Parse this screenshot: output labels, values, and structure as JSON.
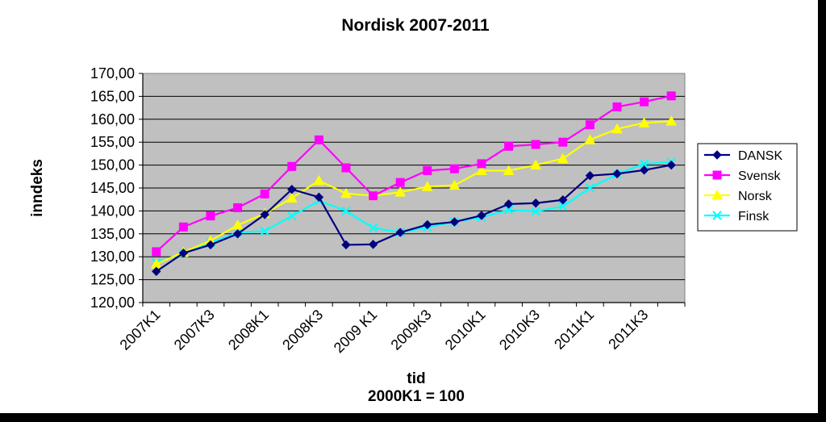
{
  "chart_data": {
    "type": "line",
    "title": "Nordisk 2007-2011",
    "xlabel": "tid",
    "xlabel_note": "2000K1 = 100",
    "ylabel": "inndeks",
    "ylim": [
      120,
      170
    ],
    "yticks": [
      "120,00",
      "125,00",
      "130,00",
      "135,00",
      "140,00",
      "145,00",
      "150,00",
      "155,00",
      "160,00",
      "165,00",
      "170,00"
    ],
    "grid": true,
    "legend_position": "right",
    "plot_background": "#c0c0c0",
    "categories": [
      "2007K1",
      "2007K2",
      "2007K3",
      "2007K4",
      "2008K1",
      "2008K2",
      "2008K3",
      "2008K4",
      "2009 K1",
      "2009K2",
      "2009K3",
      "2009K4",
      "2010K1",
      "2010K2",
      "2010K3",
      "2010K4",
      "2011K1",
      "2011K2",
      "2011K3",
      "2011K4"
    ],
    "xtick_labels": [
      "2007K1",
      "2007K3",
      "2008K1",
      "2008K3",
      "2009 K1",
      "2009K3",
      "2010K1",
      "2010K3",
      "2011K1",
      "2011K3"
    ],
    "series": [
      {
        "name": "DANSK",
        "color": "#000080",
        "marker": "diamond",
        "values": [
          126.8,
          130.8,
          132.6,
          135.0,
          139.2,
          144.7,
          143.0,
          132.6,
          132.7,
          135.3,
          137.0,
          137.6,
          139.0,
          141.5,
          141.7,
          142.4,
          147.7,
          148.1,
          148.9,
          150.0
        ]
      },
      {
        "name": "Svensk",
        "color": "#ff00ff",
        "marker": "square",
        "values": [
          131.1,
          136.5,
          138.9,
          140.7,
          143.7,
          149.7,
          155.5,
          149.4,
          143.3,
          146.2,
          148.8,
          149.2,
          150.3,
          154.1,
          154.5,
          155.0,
          158.8,
          162.7,
          163.8,
          165.1
        ]
      },
      {
        "name": "Norsk",
        "color": "#ffff00",
        "marker": "triangle",
        "values": [
          128.4,
          131.0,
          133.5,
          136.9,
          139.4,
          142.8,
          146.6,
          143.8,
          143.3,
          144.1,
          145.3,
          145.6,
          148.8,
          148.8,
          150.0,
          151.4,
          155.5,
          157.9,
          159.2,
          159.6
        ]
      },
      {
        "name": "Finsk",
        "color": "#00ffff",
        "marker": "x",
        "values": [
          128.7,
          130.7,
          133.0,
          135.3,
          135.6,
          138.9,
          142.2,
          140.0,
          136.3,
          135.3,
          136.4,
          137.6,
          138.6,
          140.2,
          139.9,
          141.0,
          145.0,
          148.0,
          150.3,
          150.6
        ]
      }
    ]
  }
}
